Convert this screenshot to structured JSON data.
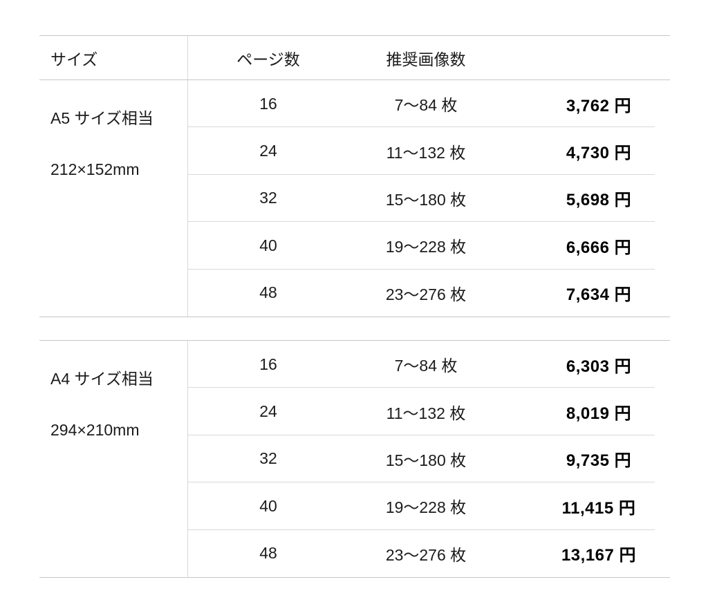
{
  "colors": {
    "background": "#ffffff",
    "text": "#1b1b1b",
    "price_text": "#000000",
    "border_outer": "#c6c6c6",
    "border_inner": "#d9d9d9"
  },
  "table": {
    "headers": {
      "size": "サイズ",
      "pages": "ページ数",
      "images": "推奨画像数",
      "price": ""
    },
    "sections": [
      {
        "size_label": "A5 サイズ相当",
        "dimensions": "212×152mm",
        "rows": [
          {
            "pages": "16",
            "images": "7〜84 枚",
            "price": "3,762 円"
          },
          {
            "pages": "24",
            "images": "11〜132 枚",
            "price": "4,730 円"
          },
          {
            "pages": "32",
            "images": "15〜180 枚",
            "price": "5,698 円"
          },
          {
            "pages": "40",
            "images": "19〜228 枚",
            "price": "6,666 円"
          },
          {
            "pages": "48",
            "images": "23〜276 枚",
            "price": "7,634 円"
          }
        ]
      },
      {
        "size_label": "A4 サイズ相当",
        "dimensions": "294×210mm",
        "rows": [
          {
            "pages": "16",
            "images": "7〜84 枚",
            "price": "6,303 円"
          },
          {
            "pages": "24",
            "images": "11〜132 枚",
            "price": "8,019 円"
          },
          {
            "pages": "32",
            "images": "15〜180 枚",
            "price": "9,735 円"
          },
          {
            "pages": "40",
            "images": "19〜228 枚",
            "price": "11,415 円"
          },
          {
            "pages": "48",
            "images": "23〜276 枚",
            "price": "13,167 円"
          }
        ]
      }
    ]
  }
}
